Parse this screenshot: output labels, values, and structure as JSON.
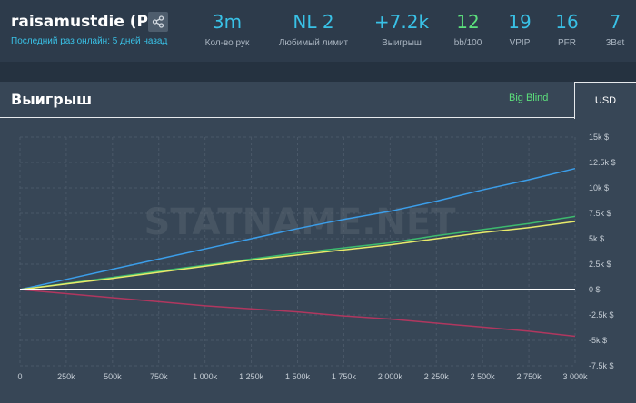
{
  "player": {
    "name": "raisamustdie (PS)",
    "last_online": "Последний раз онлайн: 5 дней назад"
  },
  "stats": [
    {
      "value": "3m",
      "label": "Кол-во рук",
      "color": "#39c1e6"
    },
    {
      "value": "NL 2",
      "label": "Любимый лимит",
      "color": "#39c1e6"
    },
    {
      "value": "+7.2k",
      "label": "Выигрыш",
      "color": "#39c1e6"
    },
    {
      "value": "12",
      "label": "bb/100",
      "color": "#5ce07c"
    },
    {
      "value": "19",
      "label": "VPIP",
      "color": "#39c1e6"
    },
    {
      "value": "16",
      "label": "PFR",
      "color": "#39c1e6"
    },
    {
      "value": "7",
      "label": "3Bet",
      "color": "#39c1e6"
    }
  ],
  "panel": {
    "title": "Выигрыш",
    "tab_bb": "Big Blind",
    "tab_usd": "USD"
  },
  "watermark": "STATNAME.NET",
  "icons": {
    "share": "share-icon"
  },
  "chart_data": {
    "type": "line",
    "xlim": [
      0,
      3000000
    ],
    "ylim": [
      -7500,
      15000
    ],
    "x_ticks": [
      0,
      250000,
      500000,
      750000,
      1000000,
      1250000,
      1500000,
      1750000,
      2000000,
      2250000,
      2500000,
      2750000,
      3000000
    ],
    "x_tick_labels": [
      "0",
      "250k",
      "500k",
      "750k",
      "1 000k",
      "1 250k",
      "1 500k",
      "1 750k",
      "2 000k",
      "2 250k",
      "2 500k",
      "2 750k",
      "3 000k"
    ],
    "y_ticks": [
      15000,
      12500,
      10000,
      7500,
      5000,
      2500,
      0,
      -2500,
      -5000,
      -7500
    ],
    "y_tick_labels": [
      "15k $",
      "12.5k $",
      "10k $",
      "7.5k $",
      "5k $",
      "2.5k $",
      "0 $",
      "-2.5k $",
      "-5k $",
      "-7.5k $"
    ],
    "grid": true,
    "x": [
      0,
      250000,
      500000,
      750000,
      1000000,
      1250000,
      1500000,
      1750000,
      2000000,
      2250000,
      2500000,
      2750000,
      3000000
    ],
    "series": [
      {
        "color": "#3b9eea",
        "values": [
          0,
          1000,
          2000,
          3000,
          4000,
          5000,
          6000,
          6900,
          7700,
          8700,
          9800,
          10800,
          11900
        ]
      },
      {
        "color": "#3dba6e",
        "values": [
          0,
          600,
          1200,
          1800,
          2400,
          3000,
          3600,
          4100,
          4600,
          5300,
          5900,
          6500,
          7200
        ]
      },
      {
        "color": "#e8ea6a",
        "values": [
          0,
          550,
          1100,
          1700,
          2300,
          2900,
          3400,
          3900,
          4400,
          5000,
          5600,
          6100,
          6700
        ]
      },
      {
        "color": "#b0375f",
        "values": [
          0,
          -400,
          -800,
          -1200,
          -1600,
          -1900,
          -2200,
          -2600,
          -2900,
          -3300,
          -3700,
          -4100,
          -4600
        ]
      },
      {
        "color": "#ffffff",
        "values": [
          0,
          0,
          0,
          0,
          0,
          0,
          0,
          0,
          0,
          0,
          0,
          0,
          0
        ]
      }
    ]
  }
}
